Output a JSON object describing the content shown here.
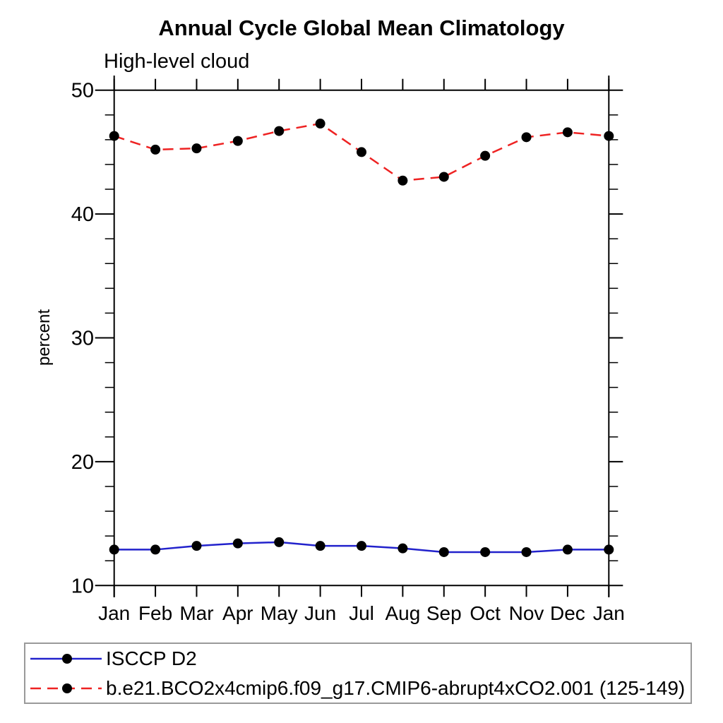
{
  "title": "Annual Cycle Global Mean Climatology",
  "subtitle": "High-level cloud",
  "chart_data": {
    "type": "line",
    "title": "Annual Cycle Global Mean Climatology",
    "subtitle": "High-level cloud",
    "xlabel": "",
    "ylabel": "percent",
    "x_labels": [
      "Jan",
      "Feb",
      "Mar",
      "Apr",
      "May",
      "Jun",
      "Jul",
      "Aug",
      "Sep",
      "Oct",
      "Nov",
      "Dec",
      "Jan"
    ],
    "ylim": [
      10,
      50
    ],
    "y_major_ticks": [
      10,
      20,
      30,
      40,
      50
    ],
    "y_minor_step": 2,
    "grid": false,
    "legend_position": "bottom-left-box",
    "axis_color": "#000000",
    "series": [
      {
        "name": "ISCCP D2",
        "color": "#2222cc",
        "style": "solid",
        "marker": "filled-circle",
        "marker_color": "#000000",
        "values": [
          12.9,
          12.9,
          13.2,
          13.4,
          13.5,
          13.2,
          13.2,
          13.0,
          12.7,
          12.7,
          12.7,
          12.9,
          12.9
        ]
      },
      {
        "name": "b.e21.BCO2x4cmip6.f09_g17.CMIP6-abrupt4xCO2.001 (125-149)",
        "color": "#ee2222",
        "style": "dashed",
        "marker": "filled-circle",
        "marker_color": "#000000",
        "values": [
          46.3,
          45.2,
          45.3,
          45.9,
          46.7,
          47.3,
          45.0,
          42.7,
          43.0,
          44.7,
          46.2,
          46.6,
          46.3
        ]
      }
    ]
  },
  "legend": {
    "items": [
      {
        "label": "ISCCP D2"
      },
      {
        "label": "b.e21.BCO2x4cmip6.f09_g17.CMIP6-abrupt4xCO2.001 (125-149)"
      }
    ]
  }
}
